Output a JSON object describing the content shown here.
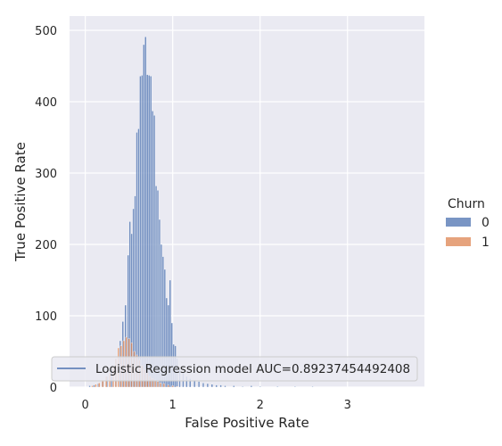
{
  "chart_data": {
    "type": "bar",
    "title": "",
    "xlabel": "False Positive Rate",
    "ylabel": "True Positive Rate",
    "xlim": [
      -0.18,
      3.88
    ],
    "ylim": [
      0,
      520
    ],
    "xticks": [
      "0",
      "1",
      "2",
      "3"
    ],
    "yticks": [
      "0",
      "100",
      "200",
      "300",
      "400",
      "500"
    ],
    "grid": true,
    "background": "#eaeaf2",
    "bin_width": 0.019,
    "legend": {
      "title": "Churn",
      "placement": "right",
      "entries": [
        {
          "label": "0",
          "color": "#4c72b0"
        },
        {
          "label": "1",
          "color": "#dd8452"
        }
      ]
    },
    "line_legend": {
      "label": "Logistic Regression model AUC=0.89237454492408",
      "color": "#4c72b0",
      "placement": "lower-left"
    },
    "series": [
      {
        "name": "0",
        "color": "#4c72b0",
        "x": [
          0.05,
          0.1,
          0.15,
          0.2,
          0.25,
          0.3,
          0.35,
          0.4,
          0.43,
          0.46,
          0.49,
          0.51,
          0.53,
          0.55,
          0.57,
          0.59,
          0.61,
          0.63,
          0.65,
          0.67,
          0.69,
          0.71,
          0.73,
          0.75,
          0.77,
          0.79,
          0.81,
          0.83,
          0.85,
          0.87,
          0.89,
          0.91,
          0.93,
          0.95,
          0.97,
          0.99,
          1.01,
          1.03,
          1.05,
          1.08,
          1.12,
          1.16,
          1.2,
          1.25,
          1.3,
          1.35,
          1.4,
          1.45,
          1.5,
          1.55,
          1.6,
          1.7,
          1.8,
          1.9,
          2.0,
          2.2,
          2.4,
          2.6
        ],
        "values": [
          2,
          3,
          5,
          8,
          15,
          25,
          40,
          65,
          92,
          115,
          185,
          232,
          215,
          250,
          268,
          357,
          362,
          436,
          437,
          480,
          491,
          438,
          437,
          436,
          387,
          381,
          282,
          276,
          235,
          200,
          183,
          165,
          125,
          115,
          150,
          90,
          60,
          58,
          40,
          25,
          20,
          15,
          12,
          10,
          8,
          6,
          5,
          4,
          3,
          3,
          2,
          2,
          1,
          2,
          1,
          1,
          1,
          1
        ]
      },
      {
        "name": "1",
        "color": "#dd8452",
        "x": [
          0.08,
          0.12,
          0.16,
          0.2,
          0.24,
          0.28,
          0.32,
          0.35,
          0.38,
          0.41,
          0.44,
          0.47,
          0.5,
          0.53,
          0.56,
          0.59,
          0.62,
          0.65,
          0.68,
          0.71,
          0.74,
          0.77,
          0.8,
          0.83,
          0.86,
          0.9,
          0.95,
          1.0,
          1.05
        ],
        "values": [
          2,
          4,
          6,
          10,
          15,
          20,
          28,
          40,
          55,
          58,
          65,
          70,
          68,
          62,
          50,
          45,
          38,
          30,
          25,
          20,
          15,
          12,
          10,
          8,
          6,
          5,
          3,
          2,
          1
        ]
      }
    ]
  }
}
